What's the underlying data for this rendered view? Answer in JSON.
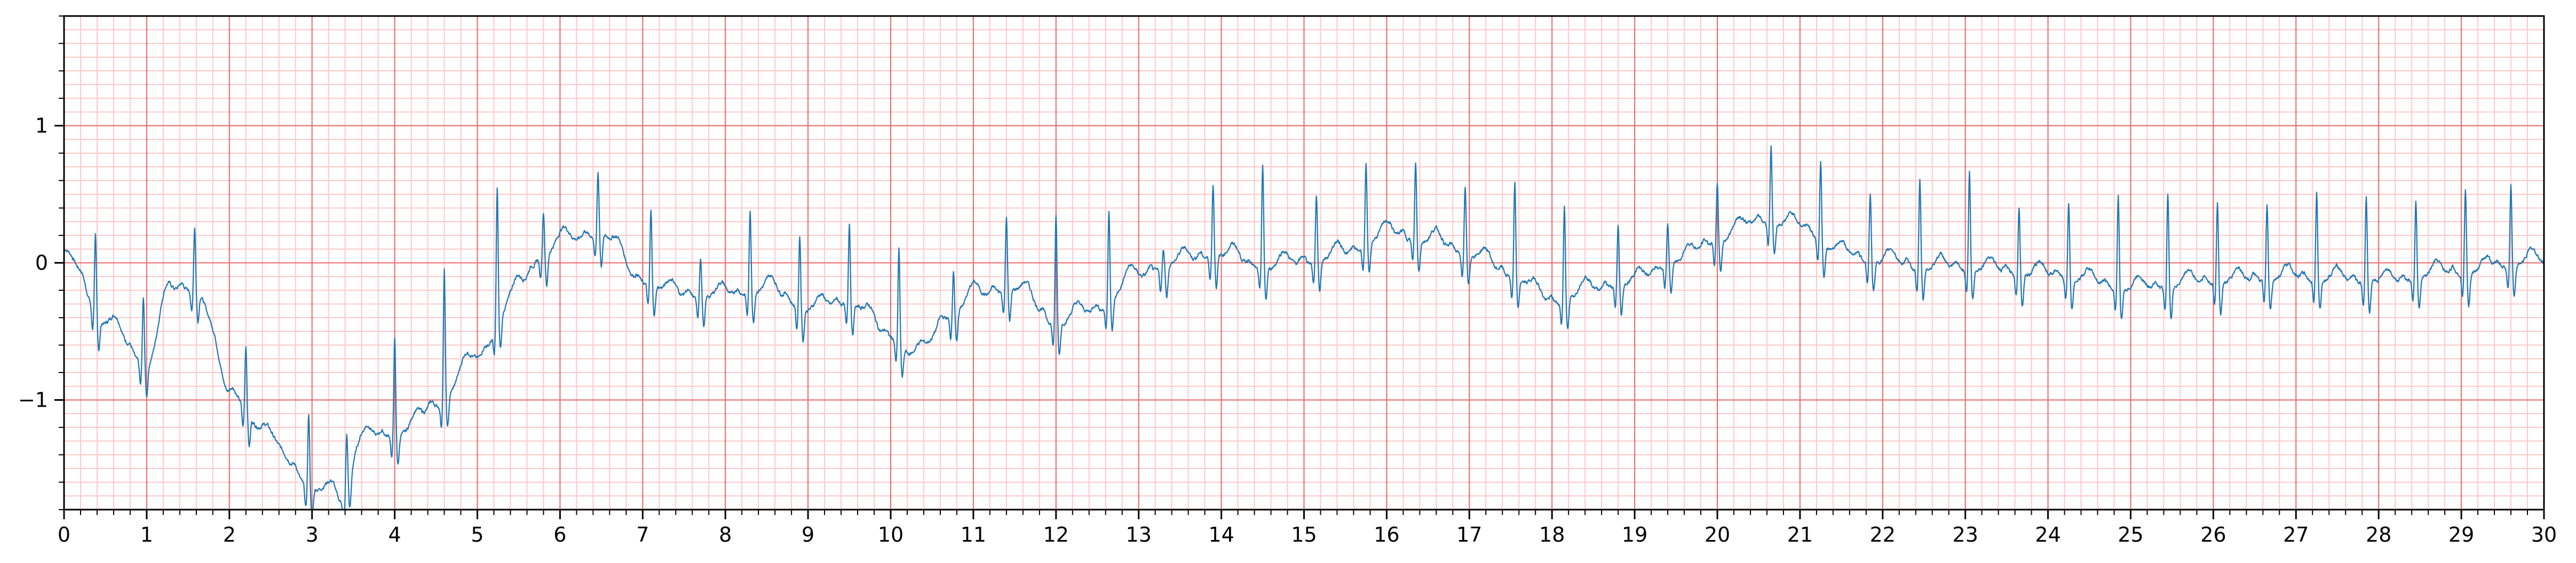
{
  "colors": {
    "major_grid": "#ee6666",
    "minor_grid": "#ffc8c8",
    "trace": "#1f77b4",
    "axis": "#000000",
    "background": "#ffffff"
  },
  "chart_data": {
    "type": "line",
    "title": "",
    "xlabel": "",
    "ylabel": "",
    "xlim": [
      0,
      30
    ],
    "ylim": [
      -1.8,
      1.8
    ],
    "x_ticks": [
      "0",
      "1",
      "2",
      "3",
      "4",
      "5",
      "6",
      "7",
      "8",
      "9",
      "10",
      "11",
      "12",
      "13",
      "14",
      "15",
      "16",
      "17",
      "18",
      "19",
      "20",
      "21",
      "22",
      "23",
      "24",
      "25",
      "26",
      "27",
      "28",
      "29",
      "30"
    ],
    "y_ticks": [
      {
        "value": -1,
        "label": "−1"
      },
      {
        "value": 0,
        "label": "0"
      },
      {
        "value": 1,
        "label": "1"
      }
    ],
    "grid": "major every 1 s / 1 mV, minor every 0.2 s / 0.1 mV",
    "series": [
      {
        "beat_times": [
          0.38,
          0.96,
          1.58,
          2.2,
          2.96,
          3.42,
          4.0,
          4.6,
          5.24,
          5.8,
          6.46,
          7.1,
          7.7,
          8.3,
          8.9,
          9.5,
          10.1,
          10.76,
          11.4,
          12.0,
          12.64,
          13.3,
          13.9,
          14.5,
          15.15,
          15.75,
          16.35,
          16.95,
          17.55,
          18.15,
          18.8,
          19.4,
          20.0,
          20.65,
          21.25,
          21.85,
          22.45,
          23.05,
          23.65,
          24.25,
          24.85,
          25.45,
          26.05,
          26.65,
          27.25,
          27.85,
          28.45,
          29.05,
          29.6
        ],
        "r_peaks": [
          0.2,
          -0.25,
          0.27,
          -0.6,
          -1.1,
          -1.25,
          -0.55,
          -0.05,
          0.55,
          0.38,
          0.67,
          0.38,
          0.05,
          0.38,
          0.2,
          0.3,
          0.1,
          -0.05,
          0.35,
          0.35,
          0.4,
          0.1,
          0.58,
          0.72,
          0.5,
          0.72,
          0.73,
          0.55,
          0.58,
          0.42,
          0.28,
          0.3,
          0.58,
          0.85,
          0.75,
          0.5,
          0.6,
          0.67,
          0.42,
          0.45,
          0.5,
          0.5,
          0.45,
          0.42,
          0.52,
          0.5,
          0.45,
          0.55,
          0.58
        ],
        "baseline": [
          [
            0,
            0.1
          ],
          [
            0.5,
            -0.45
          ],
          [
            1.0,
            -0.75
          ],
          [
            1.3,
            -0.2
          ],
          [
            1.6,
            -0.2
          ],
          [
            2.0,
            -0.95
          ],
          [
            2.5,
            -1.3
          ],
          [
            3.0,
            -1.65
          ],
          [
            3.35,
            -1.75
          ],
          [
            3.6,
            -1.3
          ],
          [
            4.1,
            -1.25
          ],
          [
            4.5,
            -1.05
          ],
          [
            5.0,
            -0.7
          ],
          [
            5.5,
            -0.2
          ],
          [
            5.8,
            0.05
          ],
          [
            6.0,
            0.15
          ],
          [
            6.5,
            0.2
          ],
          [
            7.0,
            -0.15
          ],
          [
            7.5,
            -0.25
          ],
          [
            8.0,
            -0.25
          ],
          [
            8.5,
            -0.2
          ],
          [
            9.0,
            -0.35
          ],
          [
            9.5,
            -0.3
          ],
          [
            10.0,
            -0.55
          ],
          [
            10.3,
            -0.7
          ],
          [
            10.7,
            -0.4
          ],
          [
            11.0,
            -0.25
          ],
          [
            11.5,
            -0.2
          ],
          [
            12.0,
            -0.45
          ],
          [
            12.5,
            -0.35
          ],
          [
            13.0,
            -0.1
          ],
          [
            13.5,
            0.0
          ],
          [
            14.0,
            0.05
          ],
          [
            14.5,
            -0.05
          ],
          [
            15.0,
            0.0
          ],
          [
            15.5,
            0.05
          ],
          [
            16.0,
            0.2
          ],
          [
            16.5,
            0.15
          ],
          [
            17.0,
            0.05
          ],
          [
            17.5,
            -0.1
          ],
          [
            18.0,
            -0.3
          ],
          [
            18.5,
            -0.2
          ],
          [
            19.0,
            -0.15
          ],
          [
            19.5,
            0.0
          ],
          [
            20.0,
            0.15
          ],
          [
            20.5,
            0.3
          ],
          [
            21.0,
            0.25
          ],
          [
            21.5,
            0.05
          ],
          [
            22.0,
            0.0
          ],
          [
            22.5,
            -0.05
          ],
          [
            23.0,
            -0.05
          ],
          [
            24.0,
            -0.1
          ],
          [
            25.0,
            -0.2
          ],
          [
            26.0,
            -0.15
          ],
          [
            27.0,
            -0.12
          ],
          [
            28.0,
            -0.15
          ],
          [
            29.0,
            -0.08
          ],
          [
            30.0,
            0.0
          ]
        ]
      }
    ]
  }
}
